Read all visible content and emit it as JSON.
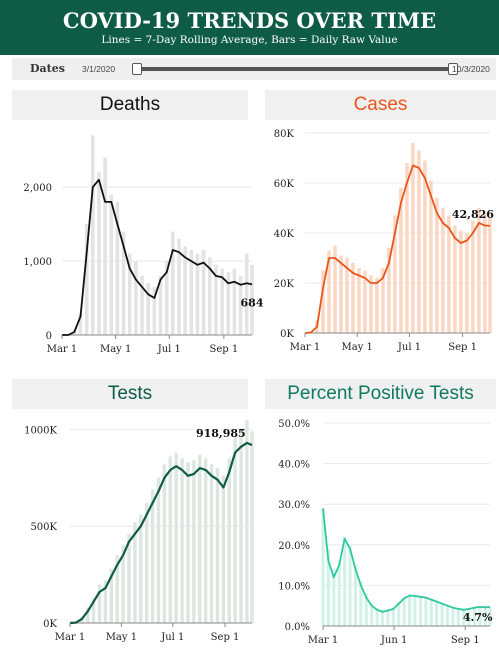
{
  "header": {
    "title": "COVID-19 TRENDS OVER TIME",
    "subtitle": "Lines = 7-Day Rolling Average, Bars = Daily Raw Value"
  },
  "date_filter": {
    "label": "Dates",
    "start": "3/1/2020",
    "end": "10/3/2020"
  },
  "colors": {
    "header": "#0e5c45",
    "deaths": "#111111",
    "cases": "#e8571a",
    "tests": "#0e5c45",
    "percent_positive": "#2fc9a0"
  },
  "chart_data": [
    {
      "id": "deaths",
      "type": "line",
      "title": "Deaths",
      "x": [
        0,
        7,
        14,
        21,
        28,
        35,
        42,
        49,
        56,
        63,
        70,
        77,
        84,
        91,
        98,
        105,
        112,
        119,
        126,
        133,
        140,
        147,
        154,
        161,
        168,
        175,
        182,
        189,
        196,
        203,
        210,
        216
      ],
      "y": [
        0,
        0,
        40,
        250,
        1100,
        2000,
        2100,
        1800,
        1800,
        1500,
        1200,
        900,
        750,
        650,
        550,
        500,
        750,
        850,
        1150,
        1120,
        1050,
        1000,
        950,
        980,
        900,
        800,
        780,
        700,
        720,
        680,
        700,
        684
      ],
      "bars": [
        0,
        0,
        60,
        300,
        1500,
        2700,
        2200,
        2400,
        1900,
        1800,
        1400,
        1100,
        1000,
        800,
        700,
        650,
        800,
        1000,
        1400,
        1300,
        1200,
        1150,
        1100,
        1150,
        1050,
        950,
        900,
        850,
        900,
        800,
        1100,
        950
      ],
      "yticks": [
        "0",
        "1,000",
        "2,000"
      ],
      "ytick_values": [
        0,
        1000,
        2000
      ],
      "ylim": [
        0,
        2800
      ],
      "xticks": [
        "Mar 1",
        "May 1",
        "Jul 1",
        "Sep 1"
      ],
      "xtick_values": [
        0,
        61,
        122,
        184
      ],
      "annotation": {
        "text": "684",
        "x": 216,
        "y": 684
      }
    },
    {
      "id": "cases",
      "type": "line",
      "title": "Cases",
      "x": [
        0,
        7,
        14,
        21,
        28,
        35,
        42,
        49,
        56,
        63,
        70,
        77,
        84,
        91,
        98,
        105,
        112,
        119,
        126,
        133,
        140,
        147,
        154,
        161,
        168,
        175,
        182,
        189,
        196,
        203,
        210,
        216
      ],
      "y": [
        0,
        200,
        2500,
        18000,
        30000,
        30000,
        28000,
        26000,
        24000,
        23000,
        22000,
        20000,
        20000,
        22000,
        28000,
        40000,
        52000,
        60000,
        67000,
        66000,
        62000,
        55000,
        48000,
        44000,
        42000,
        38000,
        36000,
        37000,
        40000,
        44000,
        43000,
        42826
      ],
      "bars": [
        0,
        500,
        5000,
        25000,
        33000,
        35000,
        31000,
        30000,
        28000,
        26000,
        25000,
        23000,
        22000,
        26000,
        34000,
        47000,
        58000,
        68000,
        76000,
        73000,
        69000,
        61000,
        54000,
        50000,
        47000,
        43000,
        41000,
        40000,
        45000,
        50000,
        48000,
        46000
      ],
      "yticks": [
        "0K",
        "20K",
        "40K",
        "60K",
        "80K"
      ],
      "ytick_values": [
        0,
        20000,
        40000,
        60000,
        80000
      ],
      "ylim": [
        0,
        80000
      ],
      "xticks": [
        "Mar 1",
        "May 1",
        "Jul 1",
        "Sep 1"
      ],
      "xtick_values": [
        0,
        61,
        122,
        184
      ],
      "annotation": {
        "text": "42,826",
        "x": 196,
        "y": 42826
      }
    },
    {
      "id": "tests",
      "type": "line",
      "title": "Tests",
      "x": [
        0,
        7,
        14,
        21,
        28,
        35,
        42,
        49,
        56,
        63,
        70,
        77,
        84,
        91,
        98,
        105,
        112,
        119,
        126,
        133,
        140,
        147,
        154,
        161,
        168,
        175,
        182,
        189,
        196,
        203,
        210,
        216
      ],
      "y": [
        0,
        2000,
        20000,
        60000,
        110000,
        160000,
        180000,
        240000,
        300000,
        350000,
        420000,
        460000,
        500000,
        560000,
        620000,
        680000,
        750000,
        790000,
        810000,
        790000,
        760000,
        770000,
        800000,
        790000,
        760000,
        740000,
        700000,
        780000,
        880000,
        910000,
        930000,
        918985
      ],
      "bars": [
        0,
        3000,
        30000,
        80000,
        130000,
        200000,
        220000,
        280000,
        350000,
        400000,
        460000,
        520000,
        560000,
        620000,
        690000,
        750000,
        820000,
        860000,
        880000,
        850000,
        830000,
        840000,
        870000,
        850000,
        820000,
        800000,
        760000,
        850000,
        960000,
        1000000,
        1050000,
        990000
      ],
      "yticks": [
        "0K",
        "500K",
        "1000K"
      ],
      "ytick_values": [
        0,
        500000,
        1000000
      ],
      "ylim": [
        0,
        1100000
      ],
      "xticks": [
        "Mar 1",
        "May 1",
        "Jul 1",
        "Sep 1"
      ],
      "xtick_values": [
        0,
        61,
        122,
        184
      ],
      "annotation": {
        "text": "918,985",
        "x": 179,
        "y": 918985
      }
    },
    {
      "id": "percent_positive",
      "type": "line",
      "title": "Percent Positive Tests",
      "x": [
        0,
        7,
        14,
        21,
        28,
        35,
        42,
        49,
        56,
        63,
        70,
        77,
        84,
        91,
        98,
        105,
        112,
        119,
        126,
        133,
        140,
        147,
        154,
        161,
        168,
        175,
        182,
        189,
        196,
        203,
        210,
        216
      ],
      "y": [
        29.0,
        16.0,
        12.0,
        15.0,
        21.5,
        19.0,
        14.0,
        10.0,
        7.0,
        5.0,
        4.0,
        3.5,
        3.8,
        4.2,
        5.5,
        6.8,
        7.5,
        7.4,
        7.2,
        7.0,
        6.5,
        6.0,
        5.5,
        5.0,
        4.5,
        4.2,
        4.0,
        4.2,
        4.5,
        4.7,
        4.6,
        4.7
      ],
      "bars": [
        29.0,
        19.0,
        14.0,
        16.0,
        22.0,
        20.0,
        15.0,
        11.0,
        8.0,
        5.5,
        4.5,
        4.0,
        4.2,
        4.5,
        6.0,
        7.2,
        7.8,
        7.6,
        7.4,
        7.2,
        6.7,
        6.2,
        5.7,
        5.2,
        4.7,
        4.4,
        4.2,
        4.4,
        4.7,
        4.9,
        4.8,
        4.7
      ],
      "yticks": [
        "0.0%",
        "10.0%",
        "20.0%",
        "30.0%",
        "40.0%",
        "50.0%"
      ],
      "ytick_values": [
        0,
        10,
        20,
        30,
        40,
        50
      ],
      "ylim": [
        0,
        50
      ],
      "xticks": [
        "Mar 1",
        "Jun 1",
        "Sep 1"
      ],
      "xtick_values": [
        0,
        92,
        184
      ],
      "annotation": {
        "text": "4.7%",
        "x": 200,
        "y": 4.7
      }
    }
  ]
}
